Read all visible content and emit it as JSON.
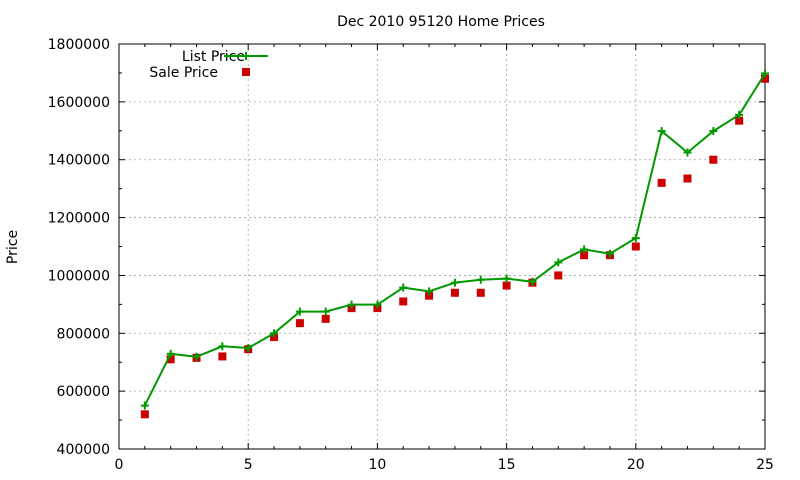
{
  "chart_data": {
    "type": "line",
    "title": "Dec 2010 95120 Home Prices",
    "xlabel": "",
    "ylabel": "Price",
    "xlim": [
      0,
      25
    ],
    "ylim": [
      400000,
      1800000
    ],
    "x_ticks": [
      0,
      5,
      10,
      15,
      20,
      25
    ],
    "y_ticks": [
      400000,
      600000,
      800000,
      1000000,
      1200000,
      1400000,
      1600000,
      1800000
    ],
    "grid": true,
    "legend_position": "top-left",
    "series": [
      {
        "name": "List Price",
        "style": "line+cross",
        "color": "#009900",
        "x": [
          1,
          2,
          3,
          4,
          5,
          6,
          7,
          8,
          9,
          10,
          11,
          12,
          13,
          14,
          15,
          16,
          17,
          18,
          19,
          20,
          21,
          22,
          23,
          24,
          25
        ],
        "values": [
          550000,
          729000,
          719000,
          755000,
          749000,
          800000,
          875000,
          875000,
          899000,
          899000,
          958000,
          945000,
          975000,
          985000,
          989000,
          978000,
          1045000,
          1090000,
          1075000,
          1129000,
          1499000,
          1425000,
          1499000,
          1555000,
          1698000
        ]
      },
      {
        "name": "Sale Price",
        "style": "square",
        "color": "#cc0000",
        "x": [
          1,
          2,
          3,
          4,
          5,
          6,
          7,
          8,
          9,
          10,
          11,
          12,
          13,
          14,
          15,
          16,
          17,
          18,
          19,
          20,
          21,
          22,
          23,
          24,
          25
        ],
        "values": [
          520000,
          710000,
          715000,
          720000,
          745000,
          787000,
          835000,
          850000,
          887000,
          887000,
          910000,
          930000,
          940000,
          940000,
          965000,
          975000,
          1000000,
          1070000,
          1070000,
          1100000,
          1320000,
          1335000,
          1400000,
          1535000,
          1680000
        ]
      }
    ]
  }
}
